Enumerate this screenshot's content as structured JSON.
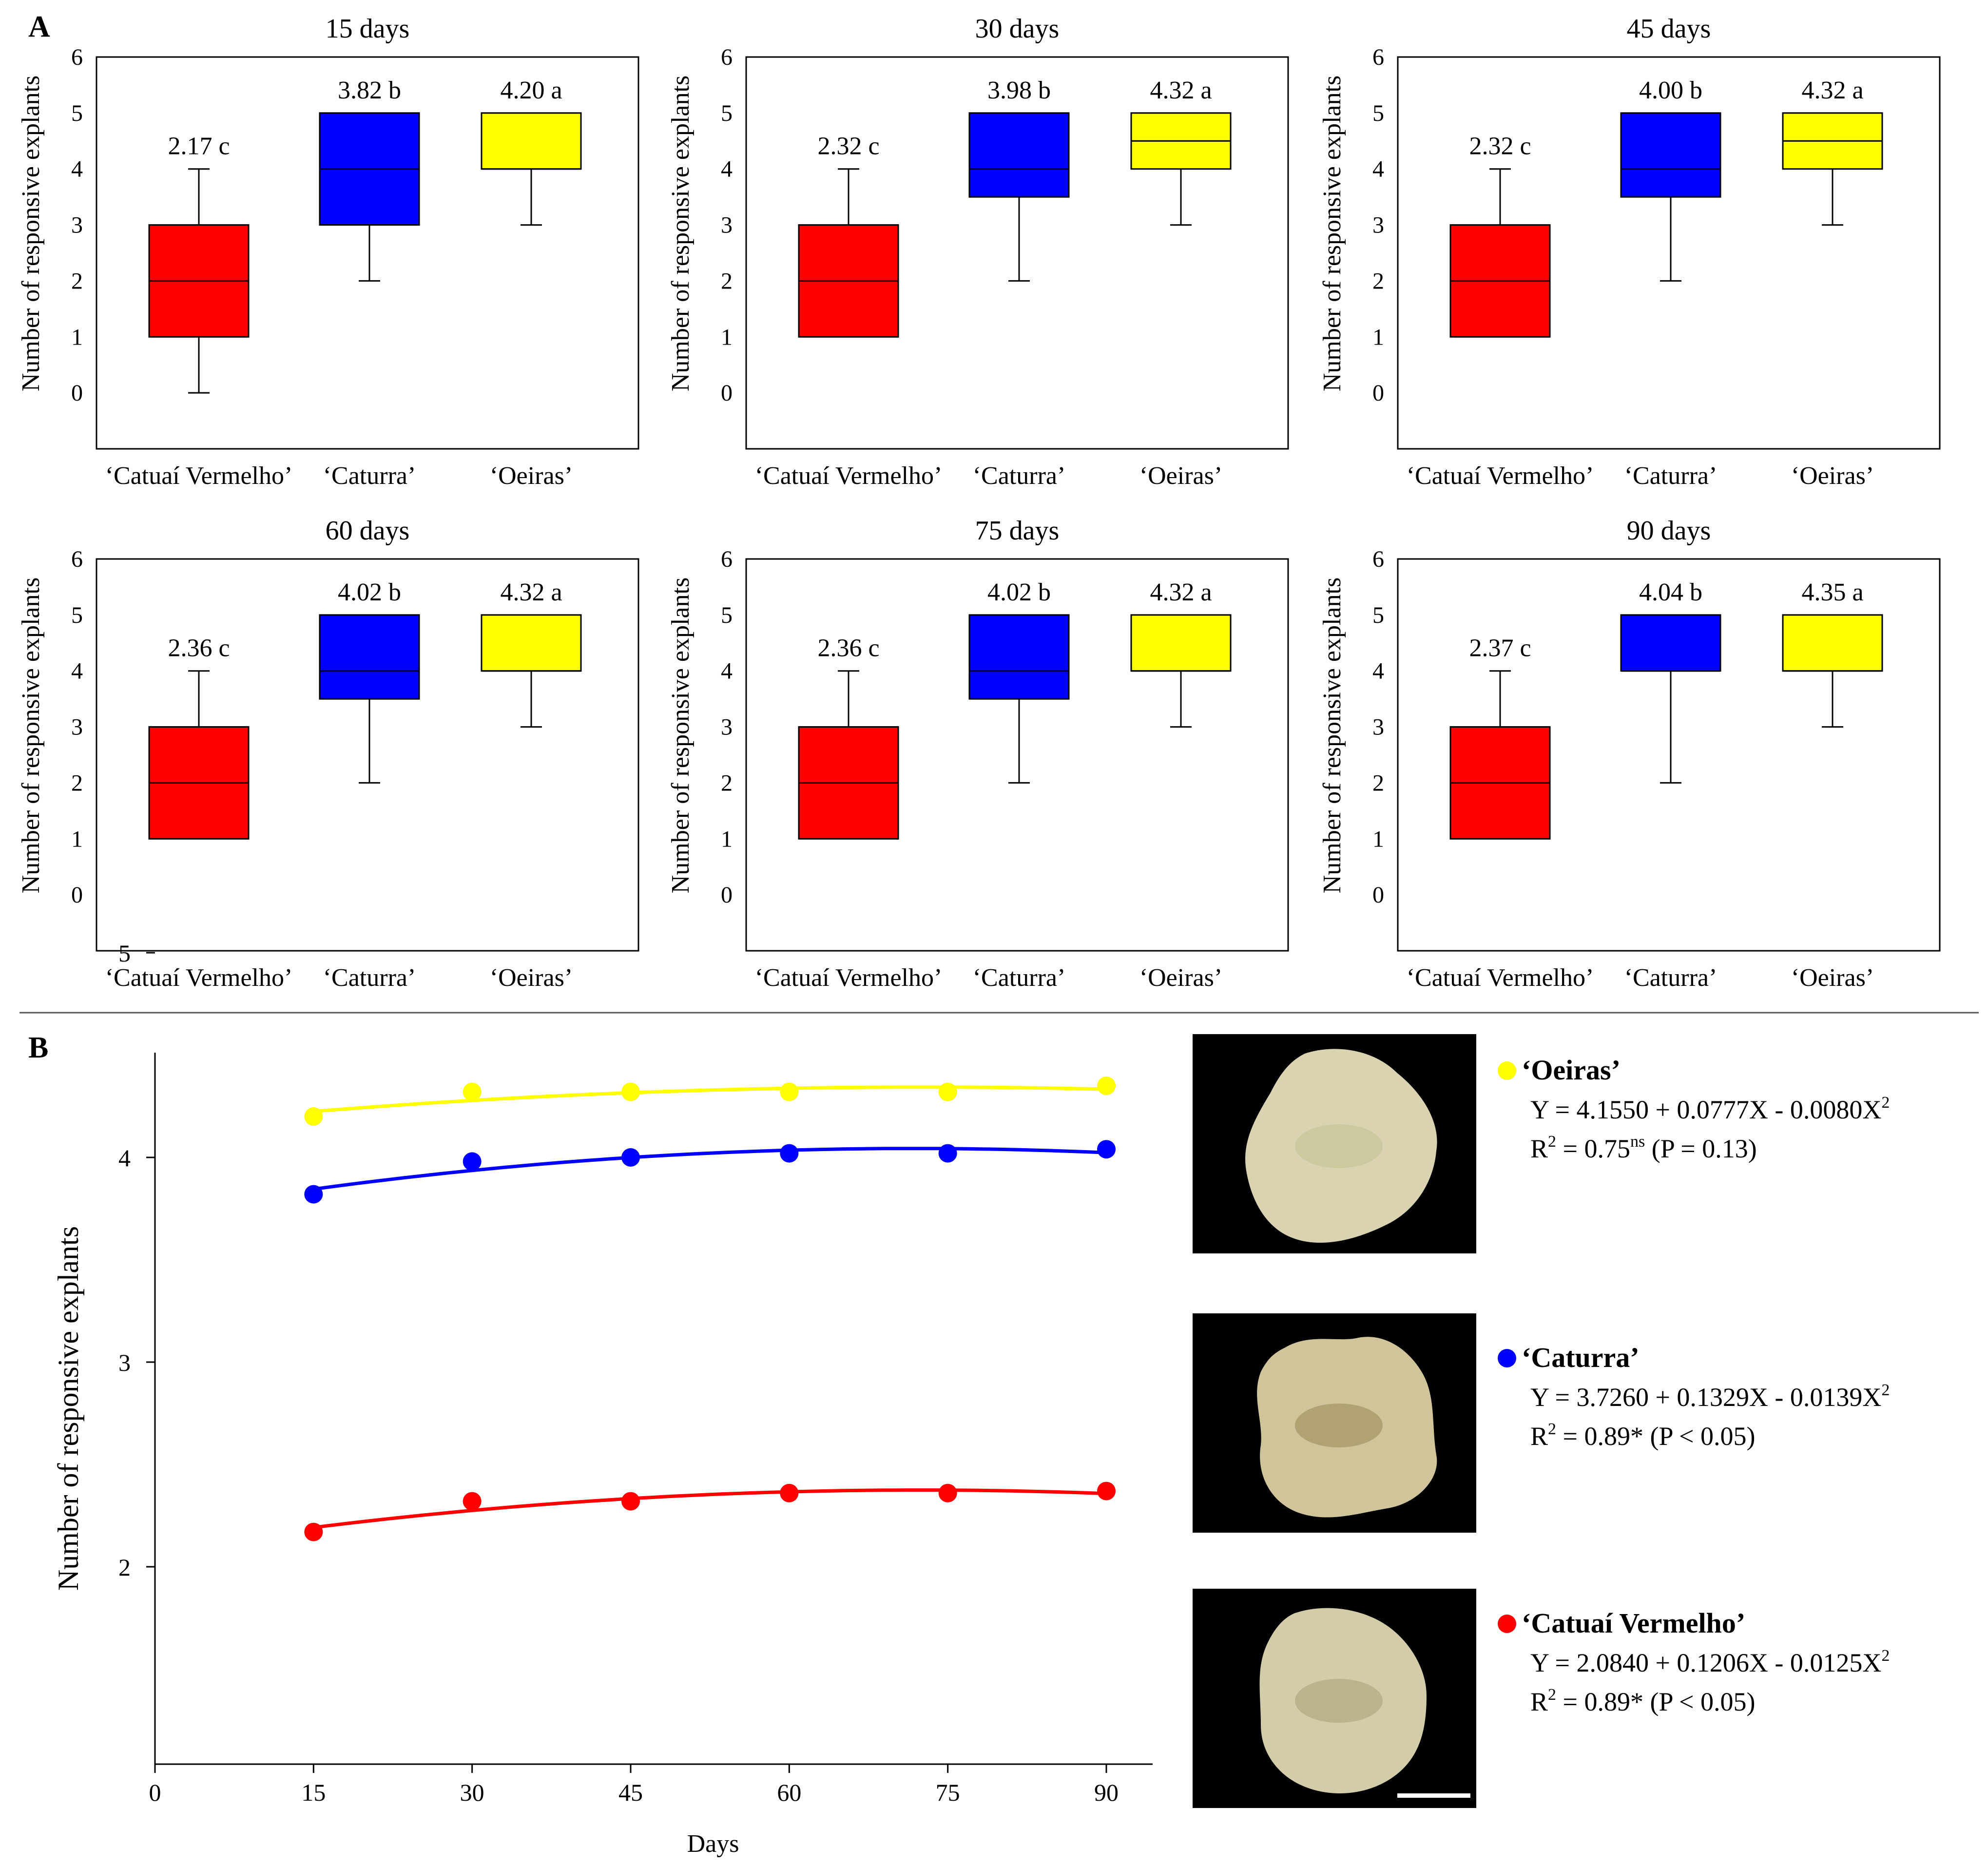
{
  "panel_labels": {
    "a": "A",
    "b": "B"
  },
  "colors": {
    "Catuai": "#ff0000",
    "Caturra": "#0000ff",
    "Oeiras": "#ffff00"
  },
  "chart_data": [
    {
      "id": "A",
      "type": "box",
      "ylabel": "Number of responsive explants",
      "ylim": [
        -1,
        6
      ],
      "yticks": [
        0,
        1,
        2,
        3,
        4,
        5,
        6
      ],
      "categories": [
        "‘Catuaí Vermelho’",
        "‘Caturra’",
        "‘Oeiras’"
      ],
      "panels": [
        {
          "title": "15 days",
          "boxes": [
            {
              "min": 0,
              "q1": 1,
              "median": 2,
              "q3": 3,
              "max": 4,
              "label": "2.17 c"
            },
            {
              "min": 2,
              "q1": 3,
              "median": 4,
              "q3": 5,
              "max": 5,
              "label": "3.82 b"
            },
            {
              "min": 3,
              "q1": 4,
              "median": 4,
              "q3": 5,
              "max": 5,
              "label": "4.20 a"
            }
          ]
        },
        {
          "title": "30 days",
          "boxes": [
            {
              "min": 1,
              "q1": 1,
              "median": 2,
              "q3": 3,
              "max": 4,
              "label": "2.32 c"
            },
            {
              "min": 2,
              "q1": 3.5,
              "median": 4,
              "q3": 5,
              "max": 5,
              "label": "3.98 b"
            },
            {
              "min": 3,
              "q1": 4,
              "median": 4.5,
              "q3": 5,
              "max": 5,
              "label": "4.32 a"
            }
          ]
        },
        {
          "title": "45 days",
          "boxes": [
            {
              "min": 1,
              "q1": 1,
              "median": 2,
              "q3": 3,
              "max": 4,
              "label": "2.32 c"
            },
            {
              "min": 2,
              "q1": 3.5,
              "median": 4,
              "q3": 5,
              "max": 5,
              "label": "4.00 b"
            },
            {
              "min": 3,
              "q1": 4,
              "median": 4.5,
              "q3": 5,
              "max": 5,
              "label": "4.32 a"
            }
          ]
        },
        {
          "title": "60 days",
          "boxes": [
            {
              "min": 1,
              "q1": 1,
              "median": 2,
              "q3": 3,
              "max": 4,
              "label": "2.36 c"
            },
            {
              "min": 2,
              "q1": 3.5,
              "median": 4,
              "q3": 5,
              "max": 5,
              "label": "4.02 b"
            },
            {
              "min": 3,
              "q1": 4,
              "median": 4,
              "q3": 5,
              "max": 5,
              "label": "4.32 a"
            }
          ]
        },
        {
          "title": "75 days",
          "boxes": [
            {
              "min": 1,
              "q1": 1,
              "median": 2,
              "q3": 3,
              "max": 4,
              "label": "2.36 c"
            },
            {
              "min": 2,
              "q1": 3.5,
              "median": 4,
              "q3": 5,
              "max": 5,
              "label": "4.02 b"
            },
            {
              "min": 3,
              "q1": 4,
              "median": 4,
              "q3": 5,
              "max": 5,
              "label": "4.32 a"
            }
          ]
        },
        {
          "title": "90 days",
          "boxes": [
            {
              "min": 1,
              "q1": 1,
              "median": 2,
              "q3": 3,
              "max": 4,
              "label": "2.37 c"
            },
            {
              "min": 2,
              "q1": 4,
              "median": 4,
              "q3": 5,
              "max": 5,
              "label": "4.04 b"
            },
            {
              "min": 3,
              "q1": 4,
              "median": 4,
              "q3": 5,
              "max": 5,
              "label": "4.35 a"
            }
          ]
        }
      ]
    },
    {
      "id": "B",
      "type": "scatter",
      "xlabel": "Days",
      "ylabel": "Number of responsive explants",
      "xlim": [
        0,
        95
      ],
      "ylim": [
        1.5,
        5
      ],
      "xticks": [
        0,
        15,
        30,
        45,
        60,
        75,
        90
      ],
      "yticks": [
        2,
        3,
        4,
        5
      ],
      "x": [
        15,
        30,
        45,
        60,
        75,
        90
      ],
      "series": [
        {
          "name": "‘Oeiras’",
          "color": "#ffff00",
          "values": [
            4.2,
            4.32,
            4.32,
            4.32,
            4.32,
            4.35
          ],
          "fit": {
            "a": 4.155,
            "b": 0.0777,
            "c": -0.008
          },
          "equation": "Y = 4.1550 + 0.0777X - 0.0080X",
          "equation_sup": "2",
          "r2_prefix": "R",
          "r2_value": " = 0.75",
          "r2_sig": "ns",
          "r2_p": " (P = 0.13)"
        },
        {
          "name": "‘Caturra’",
          "color": "#0000ff",
          "values": [
            3.82,
            3.98,
            4.0,
            4.02,
            4.02,
            4.04
          ],
          "fit": {
            "a": 3.726,
            "b": 0.1329,
            "c": -0.0139
          },
          "equation": "Y = 3.7260 + 0.1329X - 0.0139X",
          "equation_sup": "2",
          "r2_prefix": "R",
          "r2_value": " = 0.89*",
          "r2_sig": "",
          "r2_p": " (P < 0.05)"
        },
        {
          "name": "‘Catuaí Vermelho’",
          "color": "#ff0000",
          "values": [
            2.17,
            2.32,
            2.32,
            2.36,
            2.36,
            2.37
          ],
          "fit": {
            "a": 2.084,
            "b": 0.1206,
            "c": -0.0125
          },
          "equation": "Y = 2.0840 + 0.1206X - 0.0125X",
          "equation_sup": "2",
          "r2_prefix": "R",
          "r2_value": " = 0.89*",
          "r2_sig": "",
          "r2_p": " (P < 0.05)"
        }
      ]
    }
  ]
}
